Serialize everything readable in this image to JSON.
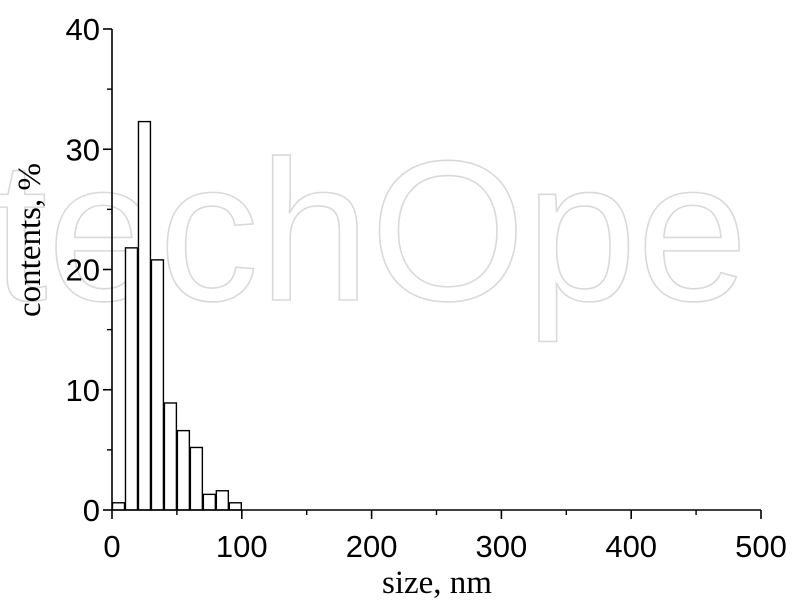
{
  "watermark": "techOpe",
  "chart_data": {
    "type": "bar",
    "xlabel": "size, nm",
    "ylabel": "contents, %",
    "xlim": [
      0,
      500
    ],
    "ylim": [
      0,
      40
    ],
    "xticks": [
      0,
      100,
      200,
      300,
      400,
      500
    ],
    "yticks": [
      0,
      10,
      20,
      30,
      40
    ],
    "bin_width": 10,
    "bins": [
      {
        "x": 5,
        "value": 0.6
      },
      {
        "x": 15,
        "value": 21.8
      },
      {
        "x": 25,
        "value": 32.3
      },
      {
        "x": 35,
        "value": 20.8
      },
      {
        "x": 45,
        "value": 8.9
      },
      {
        "x": 55,
        "value": 6.6
      },
      {
        "x": 65,
        "value": 5.2
      },
      {
        "x": 75,
        "value": 1.3
      },
      {
        "x": 85,
        "value": 1.6
      },
      {
        "x": 95,
        "value": 0.6
      }
    ],
    "grid": false,
    "legend": "none"
  }
}
